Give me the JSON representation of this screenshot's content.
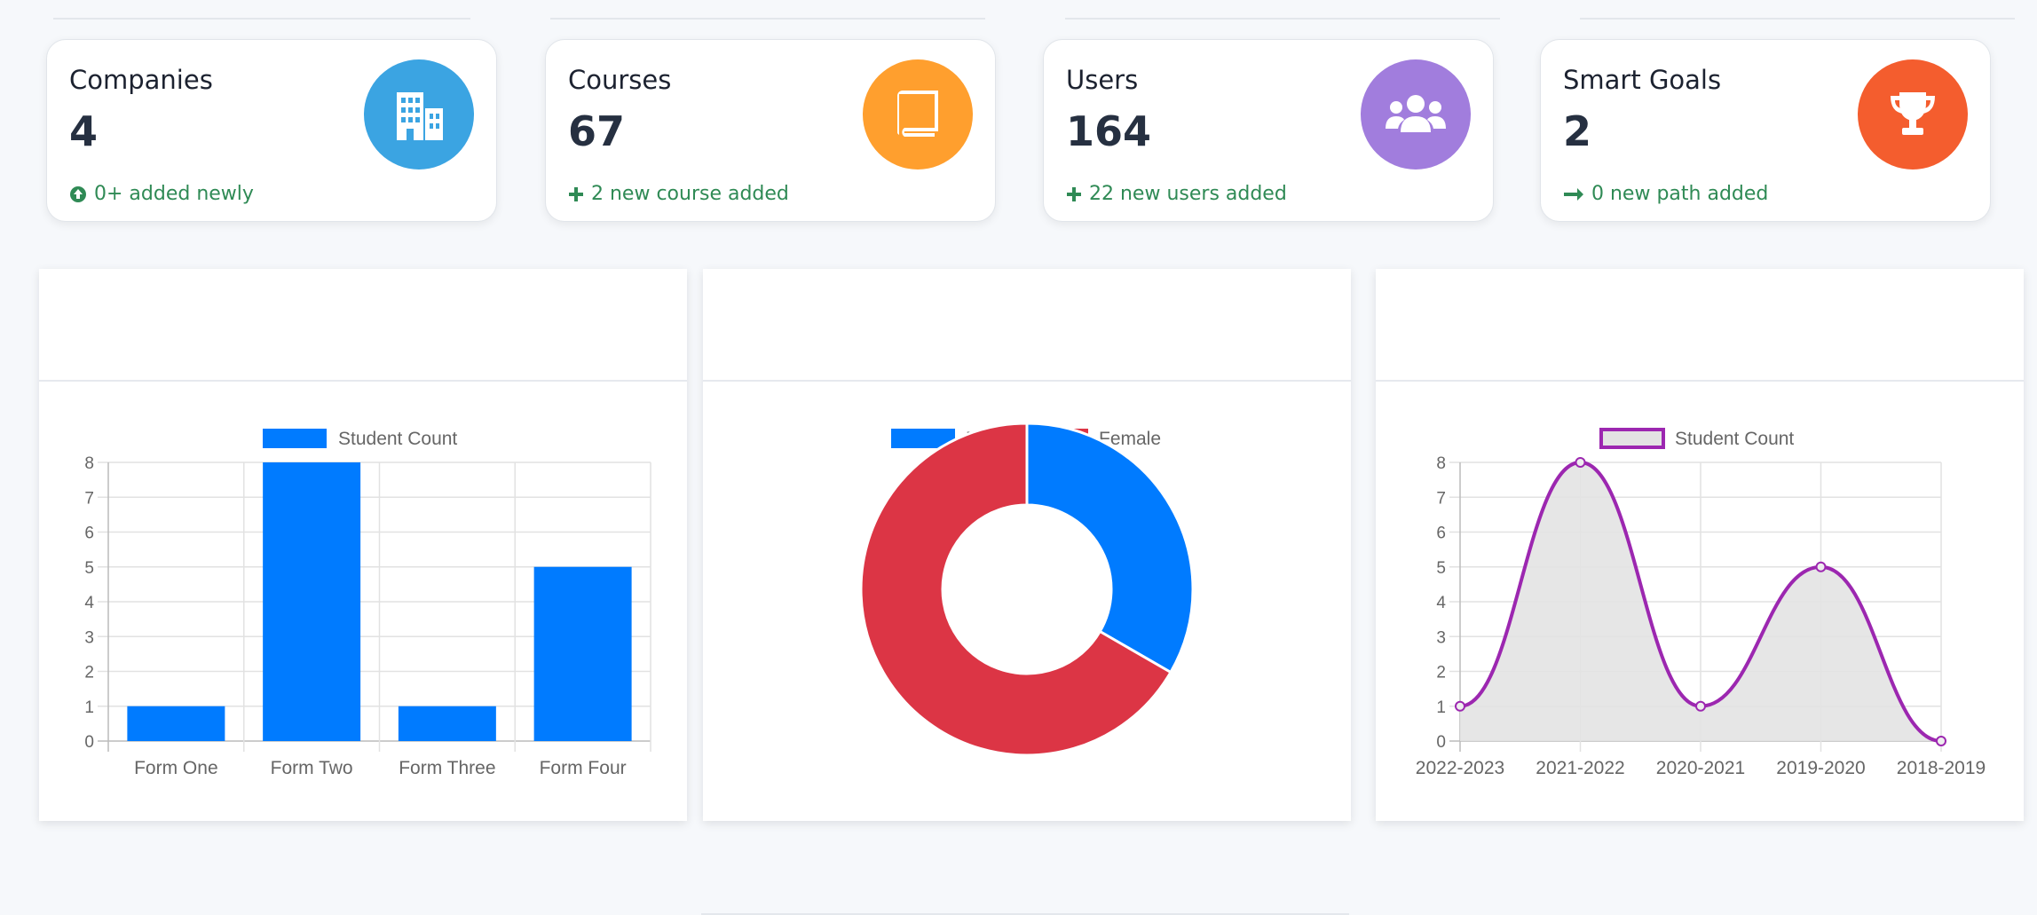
{
  "stats": [
    {
      "title": "Companies",
      "value": "4",
      "note": "0+ added newly",
      "note_icon": "arrow-up-circle-icon",
      "icon": "building-icon",
      "color": "#3ba4e2"
    },
    {
      "title": "Courses",
      "value": "67",
      "note": "2 new course added",
      "note_icon": "plus-icon",
      "icon": "book-icon",
      "color": "#ff9f2e"
    },
    {
      "title": "Users",
      "value": "164",
      "note": "22 new users added",
      "note_icon": "plus-icon",
      "icon": "users-icon",
      "color": "#a17ddd"
    },
    {
      "title": "Smart Goals",
      "value": "2",
      "note": "0 new path added",
      "note_icon": "arrow-right-icon",
      "icon": "trophy-icon",
      "color": "#f45d2e"
    }
  ],
  "note_color": "#2f8a55",
  "chart_data": [
    {
      "type": "bar",
      "legend": [
        "Student Count"
      ],
      "categories": [
        "Form One",
        "Form Two",
        "Form Three",
        "Form Four"
      ],
      "series": [
        {
          "name": "Student Count",
          "values": [
            1,
            8,
            1,
            5
          ],
          "color": "#007bff"
        }
      ],
      "ylim": [
        0,
        8
      ],
      "yticks": [
        0,
        1,
        2,
        3,
        4,
        5,
        6,
        7,
        8
      ],
      "grid": true,
      "legend_position": "top"
    },
    {
      "type": "pie",
      "variant": "doughnut",
      "labels": [
        "Male",
        "Female"
      ],
      "values": [
        1,
        2
      ],
      "colors": [
        "#007bff",
        "#dc3545"
      ],
      "legend_position": "top"
    },
    {
      "type": "line",
      "legend": [
        "Student Count"
      ],
      "categories": [
        "2022-2023",
        "2021-2022",
        "2020-2021",
        "2019-2020",
        "2018-2019"
      ],
      "series": [
        {
          "name": "Student Count",
          "values": [
            1,
            8,
            1,
            5,
            0
          ],
          "color": "#9c27b0",
          "fill": "#e3e3e3"
        }
      ],
      "ylim": [
        0,
        8
      ],
      "yticks": [
        0,
        1,
        2,
        3,
        4,
        5,
        6,
        7,
        8
      ],
      "smooth": true,
      "grid": true,
      "legend_position": "top"
    }
  ]
}
